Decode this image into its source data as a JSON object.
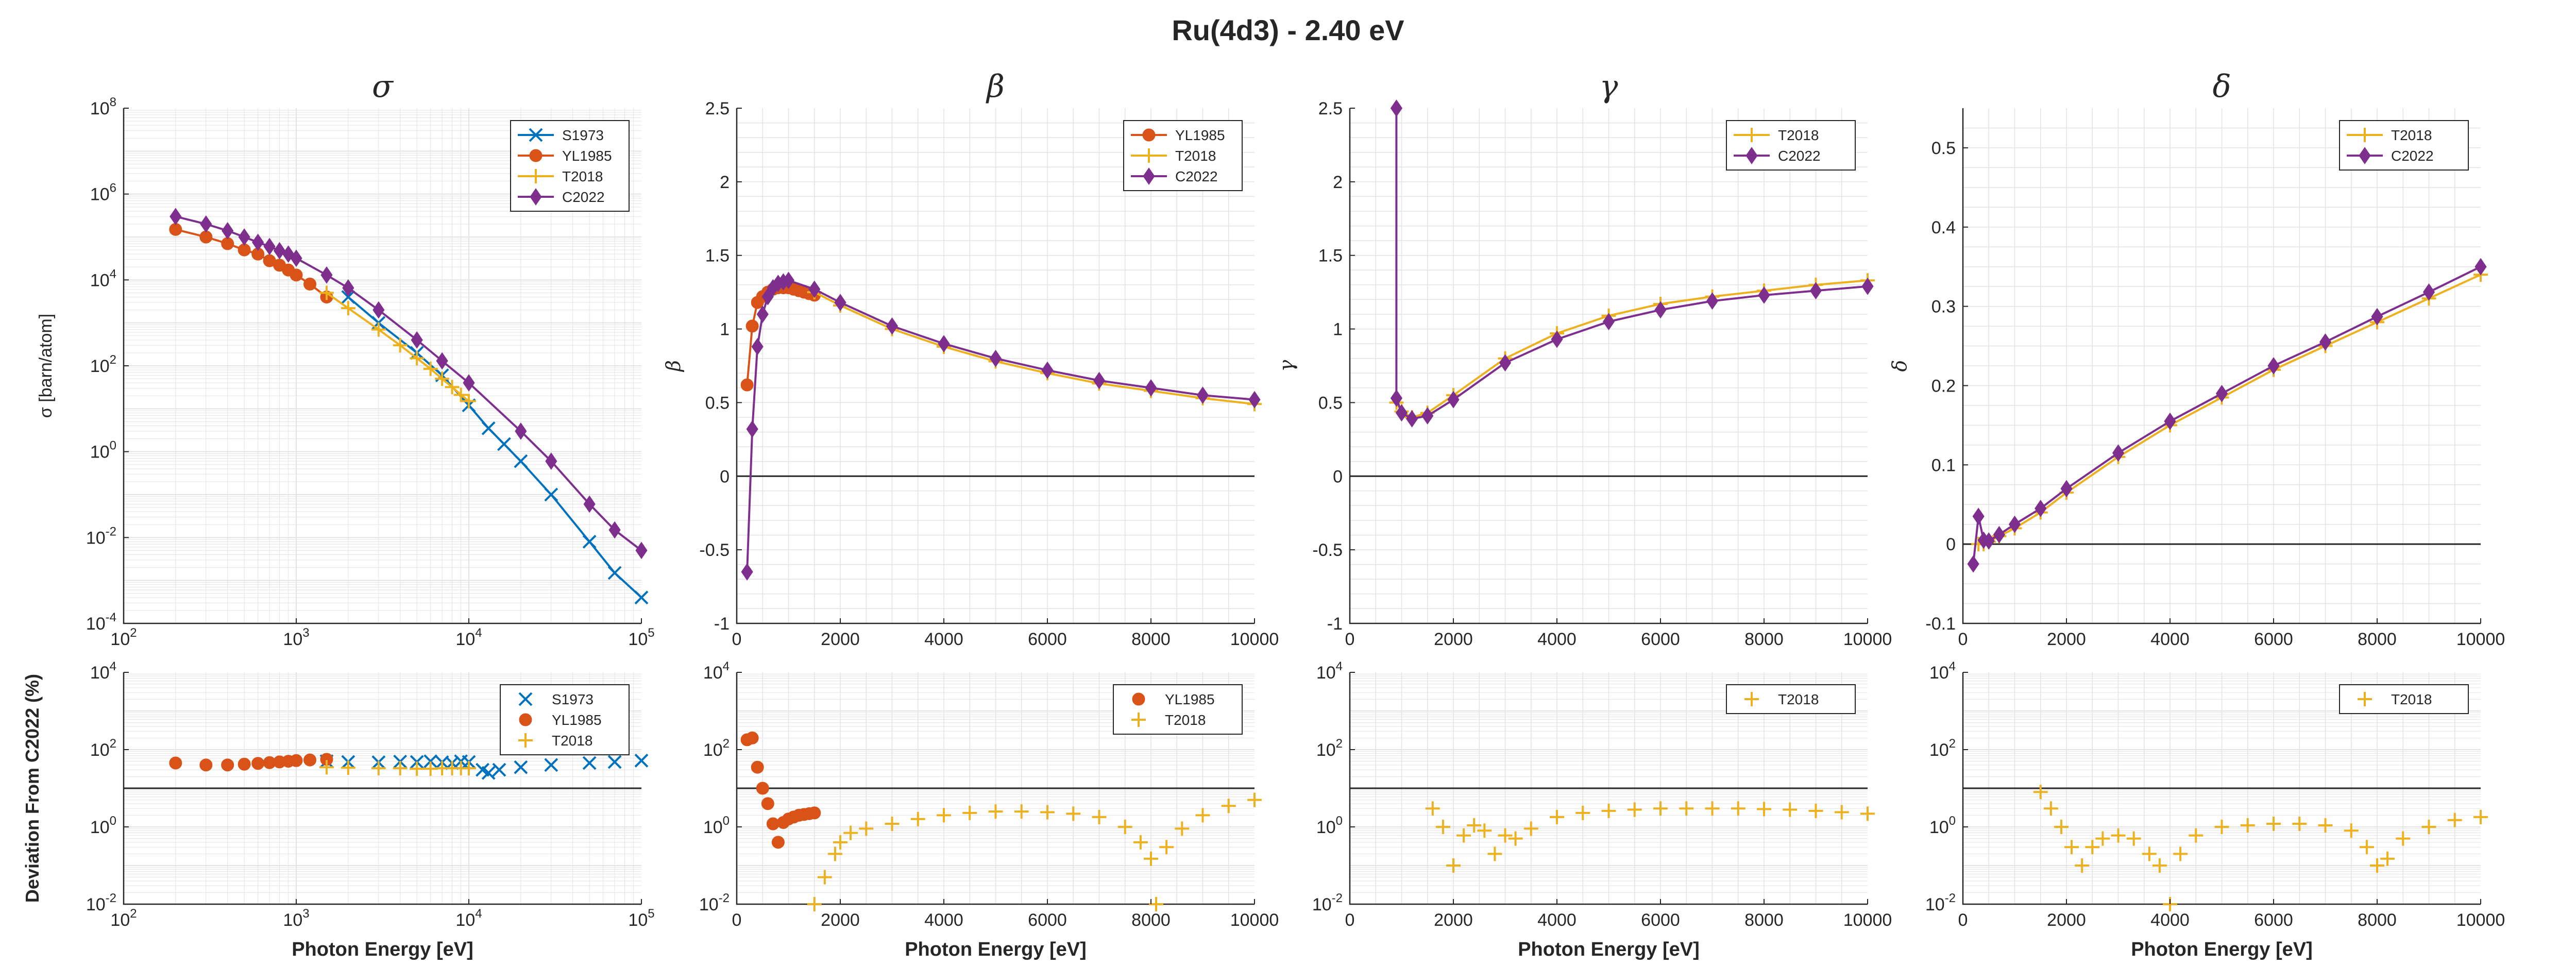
{
  "figure_title": "Ru(4d3) - 2.40 eV",
  "colors": {
    "S1973": "#0072BD",
    "YL1985": "#D95319",
    "T2018": "#EDB120",
    "C2022": "#7E2F8E"
  },
  "chart_data": [
    {
      "id": "sigma",
      "type": "line",
      "title": "σ",
      "ylabel": "σ [barn/atom]",
      "xlabel": "",
      "xscale": "log",
      "yscale": "log",
      "xlim": [
        100,
        100000
      ],
      "ylim": [
        0.0001,
        100000000
      ],
      "xticks": [
        "10^2",
        "10^3",
        "10^4",
        "10^5"
      ],
      "yticks": [
        "10^-4",
        "10^-2",
        "10^0",
        "10^2",
        "10^4",
        "10^6",
        "10^8"
      ],
      "grid": true,
      "legend_position": "top-right",
      "legend": [
        "S1973",
        "YL1985",
        "T2018",
        "C2022"
      ],
      "series": [
        {
          "name": "S1973",
          "marker": "x",
          "x": [
            2000,
            3000,
            5000,
            7000,
            10000,
            13000,
            16000,
            20000,
            30000,
            50000,
            70000,
            100000
          ],
          "y": [
            4000,
            1000,
            200,
            60,
            12,
            3.5,
            1.5,
            0.6,
            0.1,
            0.008,
            0.0015,
            0.0004
          ]
        },
        {
          "name": "YL1985",
          "marker": "o",
          "x": [
            200,
            300,
            400,
            500,
            600,
            700,
            800,
            900,
            1000,
            1200,
            1500
          ],
          "y": [
            150000,
            100000,
            70000,
            50000,
            40000,
            28000,
            22000,
            17000,
            13000,
            8000,
            4000
          ]
        },
        {
          "name": "T2018",
          "marker": "+",
          "x": [
            1500,
            2000,
            3000,
            4000,
            5000,
            6000,
            7000,
            8000,
            9000,
            10000
          ],
          "y": [
            5000,
            2200,
            700,
            300,
            150,
            85,
            50,
            32,
            21,
            15
          ]
        },
        {
          "name": "C2022",
          "marker": "d",
          "x": [
            200,
            300,
            400,
            500,
            600,
            700,
            800,
            900,
            1000,
            1500,
            2000,
            3000,
            5000,
            7000,
            10000,
            20000,
            30000,
            50000,
            70000,
            100000
          ],
          "y": [
            300000,
            200000,
            140000,
            100000,
            75000,
            60000,
            48000,
            40000,
            32000,
            13000,
            6500,
            2000,
            400,
            130,
            40,
            3,
            0.6,
            0.06,
            0.015,
            0.005
          ]
        }
      ]
    },
    {
      "id": "beta",
      "type": "line",
      "title": "β",
      "ylabel": "β",
      "xlabel": "",
      "xlim": [
        0,
        10000
      ],
      "ylim": [
        -1,
        2.5
      ],
      "xticks": [
        "0",
        "2000",
        "4000",
        "6000",
        "8000",
        "10000"
      ],
      "yticks": [
        "-1",
        "-0.5",
        "0",
        "0.5",
        "1",
        "1.5",
        "2",
        "2.5"
      ],
      "grid": true,
      "legend_position": "top-right",
      "legend": [
        "YL1985",
        "T2018",
        "C2022"
      ],
      "series": [
        {
          "name": "YL1985",
          "marker": "o",
          "x": [
            200,
            300,
            400,
            500,
            600,
            700,
            800,
            900,
            1000,
            1100,
            1200,
            1300,
            1400,
            1500
          ],
          "y": [
            0.62,
            1.02,
            1.18,
            1.22,
            1.25,
            1.27,
            1.28,
            1.28,
            1.28,
            1.27,
            1.26,
            1.25,
            1.24,
            1.23
          ]
        },
        {
          "name": "T2018",
          "marker": "+",
          "x": [
            1500,
            2000,
            3000,
            4000,
            5000,
            6000,
            7000,
            8000,
            9000,
            10000
          ],
          "y": [
            1.25,
            1.16,
            1.0,
            0.88,
            0.78,
            0.7,
            0.63,
            0.58,
            0.53,
            0.49
          ]
        },
        {
          "name": "C2022",
          "marker": "d",
          "x": [
            200,
            300,
            400,
            500,
            600,
            700,
            800,
            900,
            1000,
            1500,
            2000,
            3000,
            4000,
            5000,
            6000,
            7000,
            8000,
            9000,
            10000
          ],
          "y": [
            -0.65,
            0.32,
            0.88,
            1.1,
            1.22,
            1.28,
            1.31,
            1.32,
            1.33,
            1.27,
            1.18,
            1.02,
            0.9,
            0.8,
            0.72,
            0.65,
            0.6,
            0.55,
            0.52
          ]
        }
      ]
    },
    {
      "id": "gamma",
      "type": "line",
      "title": "γ",
      "ylabel": "γ",
      "xlabel": "",
      "xlim": [
        0,
        10000
      ],
      "ylim": [
        -1,
        2.5
      ],
      "xticks": [
        "0",
        "2000",
        "4000",
        "6000",
        "8000",
        "10000"
      ],
      "yticks": [
        "-1",
        "-0.5",
        "0",
        "0.5",
        "1",
        "1.5",
        "2",
        "2.5"
      ],
      "grid": true,
      "legend_position": "top-right",
      "legend": [
        "T2018",
        "C2022"
      ],
      "series": [
        {
          "name": "T2018",
          "marker": "+",
          "x": [
            900,
            1000,
            1200,
            1500,
            2000,
            3000,
            4000,
            5000,
            6000,
            7000,
            8000,
            9000,
            10000
          ],
          "y": [
            0.5,
            0.44,
            0.4,
            0.43,
            0.55,
            0.8,
            0.97,
            1.09,
            1.17,
            1.22,
            1.26,
            1.3,
            1.33
          ]
        },
        {
          "name": "C2022",
          "marker": "d",
          "x": [
            900,
            900,
            1000,
            1200,
            1500,
            2000,
            3000,
            4000,
            5000,
            6000,
            7000,
            8000,
            9000,
            10000
          ],
          "y": [
            2.5,
            0.53,
            0.43,
            0.39,
            0.41,
            0.52,
            0.77,
            0.93,
            1.05,
            1.13,
            1.19,
            1.23,
            1.26,
            1.29
          ]
        }
      ]
    },
    {
      "id": "delta",
      "type": "line",
      "title": "δ",
      "ylabel": "δ",
      "xlabel": "",
      "xlim": [
        0,
        10000
      ],
      "ylim": [
        -0.1,
        0.55
      ],
      "xticks": [
        "0",
        "2000",
        "4000",
        "6000",
        "8000",
        "10000"
      ],
      "yticks": [
        "-0.1",
        "0",
        "0.1",
        "0.2",
        "0.3",
        "0.4",
        "0.5"
      ],
      "grid": true,
      "legend_position": "top-right",
      "legend": [
        "T2018",
        "C2022"
      ],
      "series": [
        {
          "name": "T2018",
          "marker": "+",
          "x": [
            300,
            400,
            500,
            700,
            1000,
            1500,
            2000,
            3000,
            4000,
            5000,
            6000,
            7000,
            8000,
            9000,
            10000
          ],
          "y": [
            0.0,
            0.0,
            0.003,
            0.01,
            0.02,
            0.04,
            0.065,
            0.11,
            0.15,
            0.185,
            0.22,
            0.25,
            0.28,
            0.31,
            0.34
          ]
        },
        {
          "name": "C2022",
          "marker": "d",
          "x": [
            200,
            300,
            400,
            500,
            700,
            1000,
            1500,
            2000,
            3000,
            4000,
            5000,
            6000,
            7000,
            8000,
            9000,
            10000
          ],
          "y": [
            -0.025,
            0.035,
            0.005,
            0.004,
            0.012,
            0.025,
            0.045,
            0.07,
            0.115,
            0.155,
            0.19,
            0.225,
            0.255,
            0.287,
            0.318,
            0.35
          ]
        }
      ]
    },
    {
      "id": "dev_sigma",
      "type": "scatter",
      "title": "",
      "ylabel": "Deviation From C2022 (%)",
      "xlabel": "Photon Energy [eV]",
      "xscale": "log",
      "yscale": "log",
      "xlim": [
        100,
        100000
      ],
      "ylim": [
        0.01,
        10000
      ],
      "xticks": [
        "10^2",
        "10^3",
        "10^4",
        "10^5"
      ],
      "yticks": [
        "10^-2",
        "10^0",
        "10^2",
        "10^4"
      ],
      "reference_line": 10,
      "grid": true,
      "legend_position": "top-right",
      "legend": [
        "S1973",
        "YL1985",
        "T2018"
      ],
      "series": [
        {
          "name": "S1973",
          "marker": "x",
          "x": [
            1500,
            2000,
            3000,
            4000,
            5000,
            6000,
            7000,
            8000,
            9000,
            10000,
            12000,
            13000,
            15000,
            20000,
            30000,
            50000,
            70000,
            100000
          ],
          "y": [
            50,
            48,
            47,
            49,
            48,
            50,
            47,
            45,
            50,
            48,
            30,
            25,
            30,
            35,
            40,
            45,
            48,
            52
          ]
        },
        {
          "name": "YL1985",
          "marker": "o",
          "x": [
            200,
            300,
            400,
            500,
            600,
            700,
            800,
            900,
            1000,
            1200,
            1500
          ],
          "y": [
            45,
            40,
            40,
            42,
            44,
            46,
            48,
            50,
            52,
            54,
            56
          ]
        },
        {
          "name": "T2018",
          "marker": "+",
          "x": [
            1500,
            2000,
            3000,
            4000,
            5000,
            6000,
            7000,
            8000,
            9000,
            10000
          ],
          "y": [
            35,
            34,
            33,
            33,
            32,
            32,
            33,
            33,
            33,
            33
          ]
        }
      ]
    },
    {
      "id": "dev_beta",
      "type": "scatter",
      "title": "",
      "ylabel": "",
      "xlabel": "Photon Energy [eV]",
      "yscale": "log",
      "xlim": [
        0,
        10000
      ],
      "ylim": [
        0.01,
        10000
      ],
      "xticks": [
        "0",
        "2000",
        "4000",
        "6000",
        "8000",
        "10000"
      ],
      "yticks": [
        "10^-2",
        "10^0",
        "10^2",
        "10^4"
      ],
      "reference_line": 10,
      "grid": true,
      "legend_position": "top-right",
      "legend": [
        "YL1985",
        "T2018"
      ],
      "series": [
        {
          "name": "YL1985",
          "marker": "o",
          "x": [
            200,
            300,
            400,
            500,
            600,
            700,
            800,
            900,
            1000,
            1100,
            1200,
            1300,
            1400,
            1500
          ],
          "y": [
            180,
            200,
            35,
            10,
            4,
            1.2,
            0.4,
            1.3,
            1.6,
            1.8,
            2,
            2.1,
            2.2,
            2.3
          ]
        },
        {
          "name": "T2018",
          "marker": "+",
          "x": [
            1500,
            1700,
            1900,
            2000,
            2200,
            2500,
            3000,
            3500,
            4000,
            4500,
            5000,
            5500,
            6000,
            6500,
            7000,
            7500,
            7800,
            8000,
            8100,
            8300,
            8600,
            9000,
            9500,
            10000
          ],
          "y": [
            0.01,
            0.05,
            0.2,
            0.4,
            0.7,
            0.9,
            1.2,
            1.6,
            2.0,
            2.3,
            2.5,
            2.5,
            2.4,
            2.2,
            1.8,
            1.0,
            0.4,
            0.15,
            0.01,
            0.3,
            0.9,
            2.0,
            3.5,
            5.0
          ]
        }
      ]
    },
    {
      "id": "dev_gamma",
      "type": "scatter",
      "title": "",
      "ylabel": "",
      "xlabel": "Photon Energy [eV]",
      "yscale": "log",
      "xlim": [
        0,
        10000
      ],
      "ylim": [
        0.01,
        10000
      ],
      "xticks": [
        "0",
        "2000",
        "4000",
        "6000",
        "8000",
        "10000"
      ],
      "yticks": [
        "10^-2",
        "10^0",
        "10^2",
        "10^4"
      ],
      "reference_line": 10,
      "grid": true,
      "legend_position": "top-right",
      "legend": [
        "T2018"
      ],
      "series": [
        {
          "name": "T2018",
          "marker": "+",
          "x": [
            1600,
            1800,
            2000,
            2200,
            2400,
            2600,
            2800,
            3000,
            3200,
            3500,
            4000,
            4500,
            5000,
            5500,
            6000,
            6500,
            7000,
            7500,
            8000,
            8500,
            9000,
            9500,
            10000
          ],
          "y": [
            3,
            1,
            0.1,
            0.6,
            1.1,
            0.8,
            0.2,
            0.6,
            0.5,
            0.9,
            1.8,
            2.3,
            2.6,
            2.8,
            3.0,
            3.0,
            3.0,
            3.0,
            2.9,
            2.8,
            2.6,
            2.4,
            2.2
          ]
        }
      ]
    },
    {
      "id": "dev_delta",
      "type": "scatter",
      "title": "",
      "ylabel": "",
      "xlabel": "Photon Energy [eV]",
      "yscale": "log",
      "xlim": [
        0,
        10000
      ],
      "ylim": [
        0.01,
        10000
      ],
      "xticks": [
        "0",
        "2000",
        "4000",
        "6000",
        "8000",
        "10000"
      ],
      "yticks": [
        "10^-2",
        "10^0",
        "10^2",
        "10^4"
      ],
      "reference_line": 10,
      "grid": true,
      "legend_position": "top-right",
      "legend": [
        "T2018"
      ],
      "series": [
        {
          "name": "T2018",
          "marker": "+",
          "x": [
            1500,
            1700,
            1900,
            2100,
            2300,
            2500,
            2700,
            3000,
            3300,
            3600,
            3800,
            4000,
            4200,
            4500,
            5000,
            5500,
            6000,
            6500,
            7000,
            7500,
            7800,
            8000,
            8200,
            8500,
            9000,
            9500,
            10000
          ],
          "y": [
            8,
            3,
            1,
            0.3,
            0.1,
            0.3,
            0.5,
            0.6,
            0.5,
            0.2,
            0.1,
            0.01,
            0.2,
            0.6,
            1.0,
            1.1,
            1.2,
            1.2,
            1.1,
            0.8,
            0.3,
            0.1,
            0.15,
            0.5,
            1.0,
            1.5,
            1.8
          ]
        }
      ]
    }
  ]
}
